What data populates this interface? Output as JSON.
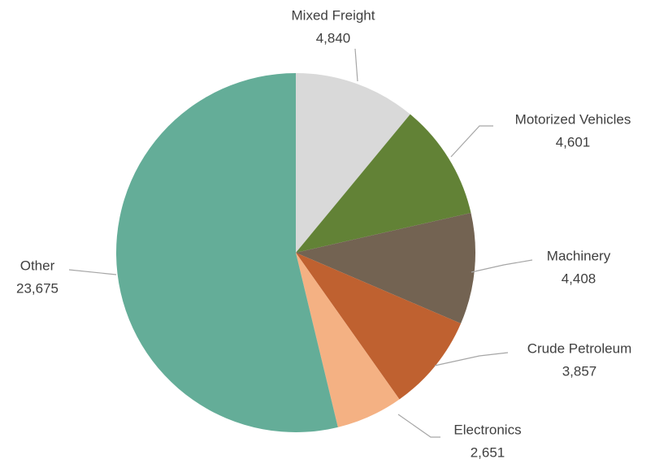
{
  "chart_data": {
    "type": "pie",
    "categories": [
      "Mixed Freight",
      "Motorized Vehicles",
      "Machinery",
      "Crude Petroleum",
      "Electronics",
      "Other"
    ],
    "values": [
      4840,
      4601,
      4408,
      3857,
      2651,
      23675
    ],
    "value_labels": [
      "4,840",
      "4,601",
      "4,408",
      "3,857",
      "2,651",
      "23,675"
    ],
    "colors": [
      "#d9d9d9",
      "#628236",
      "#736352",
      "#bf6130",
      "#f4b183",
      "#64ad98"
    ]
  }
}
